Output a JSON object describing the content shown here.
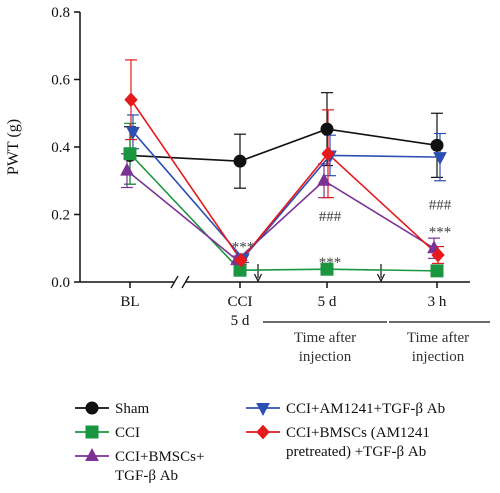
{
  "chart_data": {
    "type": "line",
    "ylabel": "PWT (g)",
    "ylim": [
      0,
      0.8
    ],
    "yticks": [
      "0.0",
      "0.2",
      "0.4",
      "0.6",
      "0.8"
    ],
    "categories": [
      "BL",
      "CCI\n5 d",
      "5 d",
      "3 h"
    ],
    "category_lines": [
      [
        "BL"
      ],
      [
        "CCI",
        "5 d"
      ],
      [
        "5 d"
      ],
      [
        "3 h"
      ]
    ],
    "time_after_label": [
      "Time after",
      "injection"
    ],
    "series": [
      {
        "name": "Sham",
        "color": "#111111",
        "marker": "circle",
        "values": [
          0.375,
          0.358,
          0.453,
          0.405
        ],
        "errors": [
          0.085,
          0.08,
          0.108,
          0.095
        ]
      },
      {
        "name": "CCI",
        "color": "#1a9641",
        "marker": "square",
        "values": [
          0.38,
          0.035,
          0.038,
          0.033
        ],
        "errors": [
          0.09,
          0.01,
          0.01,
          0.01
        ]
      },
      {
        "name": "CCI+BMSCs+ TGF-β Ab",
        "lines": [
          "CCI+BMSCs+",
          "TGF-β Ab"
        ],
        "color": "#7b3294",
        "marker": "triangle-up",
        "values": [
          0.33,
          0.065,
          0.3,
          0.1
        ],
        "errors": [
          0.05,
          0.012,
          0.05,
          0.03
        ]
      },
      {
        "name": "CCI+AM1241+TGF-β Ab",
        "lines": [
          "CCI+AM1241+TGF-β Ab"
        ],
        "color": "#2c4fb5",
        "marker": "triangle-down",
        "values": [
          0.445,
          0.07,
          0.375,
          0.37
        ],
        "errors": [
          0.05,
          0.012,
          0.06,
          0.07
        ]
      },
      {
        "name": "CCI+BMSCs (AM1241 pretreated) +TGF-β Ab",
        "lines": [
          "CCI+BMSCs (AM1241",
          "pretreated) +TGF-β Ab"
        ],
        "color": "#e41a1c",
        "marker": "diamond",
        "values": [
          0.54,
          0.065,
          0.38,
          0.08
        ],
        "errors": [
          0.118,
          0.012,
          0.13,
          0.025
        ]
      }
    ],
    "annotations": [
      {
        "text": "***",
        "x": 1,
        "y": 0.105
      },
      {
        "text": "***",
        "x": 2,
        "y": 0.06
      },
      {
        "text": "###",
        "x": 2,
        "y": 0.195
      },
      {
        "text": "###",
        "x": 3,
        "y": 0.23
      },
      {
        "text": "***",
        "x": 3,
        "y": 0.15
      }
    ],
    "legend_position": "bottom"
  }
}
